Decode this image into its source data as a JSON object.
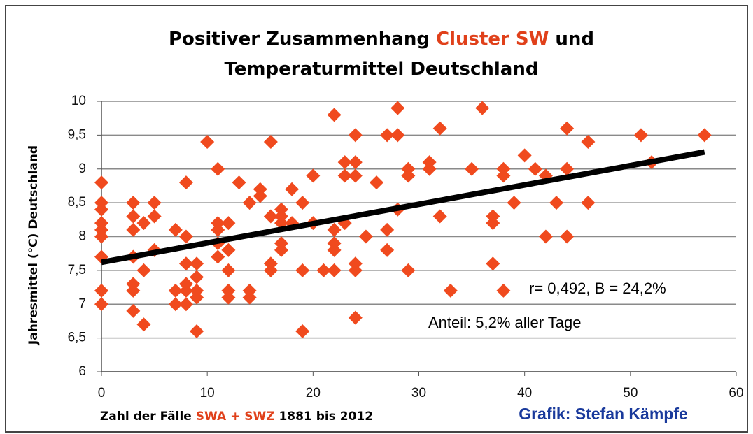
{
  "chart_data": {
    "type": "scatter",
    "title_lines": [
      [
        {
          "text": "Positiver Zusammenhang ",
          "color": "#000000"
        },
        {
          "text": "Cluster SW",
          "color": "#e0401a"
        },
        {
          "text": " und",
          "color": "#000000"
        }
      ],
      [
        {
          "text": "Temperaturmittel Deutschland",
          "color": "#000000"
        }
      ]
    ],
    "x_label": [
      {
        "text": "Zahl der Fälle ",
        "color": "#000000"
      },
      {
        "text": "SWA + SWZ",
        "color": "#e0401a"
      },
      {
        "text": " 1881 bis 2012",
        "color": "#000000"
      }
    ],
    "y_label": "Jahresmittel (°C) Deutschland",
    "annotations": [
      "r= 0,492, B = 24,2%",
      "Anteil: 5,2% aller Tage"
    ],
    "credit": {
      "text": "Grafik: Stefan Kämpfe",
      "color": "#1a3a9c"
    },
    "color": "#f04a1e",
    "grid": true,
    "xlim": [
      0,
      60
    ],
    "xticks": [
      0,
      10,
      20,
      30,
      40,
      50,
      60
    ],
    "ylim": [
      6,
      10
    ],
    "yticks": [
      6,
      {
        "value": 6.5,
        "label": "6,5"
      },
      7,
      {
        "value": 7.5,
        "label": "7,5"
      },
      8,
      {
        "value": 8.5,
        "label": "8,5"
      },
      9,
      {
        "value": 9.5,
        "label": "9,5"
      },
      10
    ],
    "x": [
      0,
      0,
      0,
      0,
      0,
      0,
      0,
      0,
      0,
      3,
      3,
      3,
      3,
      3,
      3,
      3,
      4,
      4,
      4,
      5,
      5,
      5,
      7,
      7,
      7,
      8,
      8,
      8,
      8,
      8,
      8,
      9,
      9,
      9,
      9,
      9,
      10,
      11,
      11,
      11,
      11,
      11,
      12,
      12,
      12,
      12,
      12,
      13,
      14,
      14,
      14,
      15,
      15,
      16,
      16,
      16,
      16,
      17,
      17,
      17,
      17,
      17,
      18,
      18,
      19,
      19,
      19,
      20,
      20,
      21,
      22,
      22,
      22,
      22,
      22,
      23,
      23,
      23,
      24,
      24,
      24,
      24,
      24,
      24,
      25,
      26,
      27,
      27,
      27,
      28,
      28,
      28,
      29,
      29,
      29,
      31,
      31,
      32,
      32,
      33,
      35,
      36,
      37,
      37,
      37,
      38,
      38,
      38,
      39,
      40,
      41,
      42,
      42,
      43,
      44,
      44,
      44,
      46,
      46,
      51,
      52,
      57
    ],
    "y": [
      8.8,
      8.5,
      8.4,
      8.2,
      8.1,
      8.0,
      7.7,
      7.2,
      7.0,
      8.5,
      8.3,
      8.1,
      7.7,
      7.3,
      7.2,
      6.9,
      8.2,
      7.5,
      6.7,
      8.5,
      8.3,
      7.8,
      8.1,
      7.2,
      7.0,
      8.8,
      8.0,
      7.6,
      7.3,
      7.2,
      7.0,
      7.6,
      7.4,
      7.2,
      7.1,
      6.6,
      9.4,
      9.0,
      8.2,
      8.1,
      7.9,
      7.7,
      8.2,
      7.8,
      7.5,
      7.2,
      7.1,
      8.8,
      8.5,
      7.2,
      7.1,
      8.7,
      8.6,
      9.4,
      8.3,
      7.6,
      7.5,
      8.4,
      8.3,
      8.2,
      7.9,
      7.8,
      8.7,
      8.2,
      8.5,
      7.5,
      6.6,
      8.9,
      8.2,
      7.5,
      9.8,
      8.1,
      7.9,
      7.8,
      7.5,
      9.1,
      8.9,
      8.2,
      9.5,
      9.1,
      8.9,
      7.6,
      7.5,
      6.8,
      8.0,
      8.8,
      9.5,
      8.1,
      7.8,
      9.9,
      9.5,
      8.4,
      9.0,
      8.9,
      7.5,
      9.1,
      9.0,
      9.6,
      8.3,
      7.2,
      9.0,
      9.9,
      8.3,
      8.2,
      7.6,
      9.0,
      8.9,
      7.2,
      8.5,
      9.2,
      9.0,
      8.9,
      8.0,
      8.5,
      9.6,
      9.0,
      8.0,
      9.4,
      8.5,
      9.5,
      9.1,
      9.5
    ],
    "trendline": {
      "x": [
        0,
        57
      ],
      "y": [
        7.62,
        9.25
      ],
      "color": "#000000"
    }
  }
}
